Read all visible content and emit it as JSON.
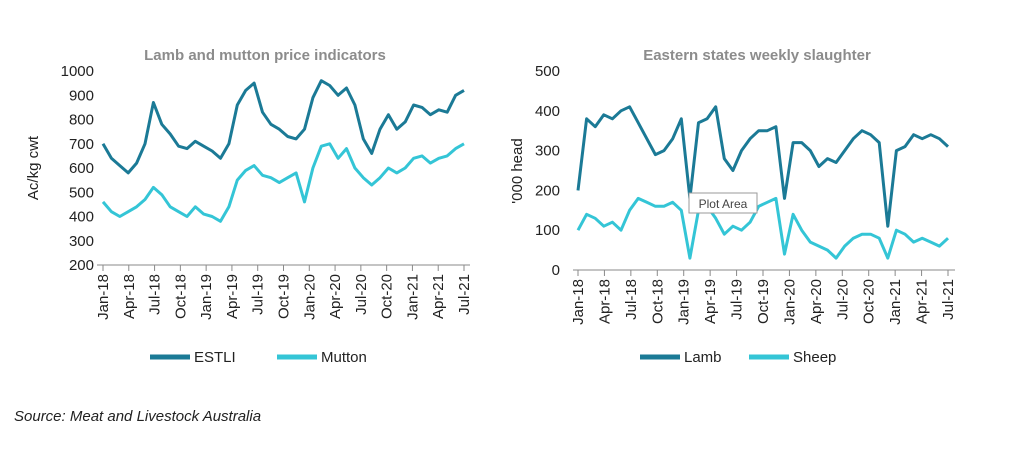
{
  "source": "Source: Meat and Livestock Australia",
  "charts": {
    "c1": {
      "title": "Lamb and mutton price indicators",
      "ylabel": "Ac/kg cwt",
      "yticks": [
        "1000",
        "900",
        "800",
        "700",
        "600",
        "500",
        "400",
        "300",
        "200"
      ],
      "xticks": [
        "Jan-18",
        "Apr-18",
        "Jul-18",
        "Oct-18",
        "Jan-19",
        "Apr-19",
        "Jul-19",
        "Oct-19",
        "Jan-20",
        "Apr-20",
        "Jul-20",
        "Oct-20",
        "Jan-21",
        "Apr-21",
        "Jul-21"
      ],
      "legend": [
        "ESTLI",
        "Mutton"
      ]
    },
    "c2": {
      "title": "Eastern states weekly slaughter",
      "ylabel": "'000 head",
      "yticks": [
        "500",
        "400",
        "300",
        "200",
        "100",
        "0"
      ],
      "xticks": [
        "Jan-18",
        "Apr-18",
        "Jul-18",
        "Oct-18",
        "Jan-19",
        "Apr-19",
        "Jul-19",
        "Oct-19",
        "Jan-20",
        "Apr-20",
        "Jul-20",
        "Oct-20",
        "Jan-21",
        "Apr-21",
        "Jul-21"
      ],
      "legend": [
        "Lamb",
        "Sheep"
      ],
      "tooltip": "Plot Area"
    }
  },
  "chart_data": [
    {
      "type": "line",
      "title": "Lamb and mutton price indicators",
      "ylabel": "Ac/kg cwt",
      "ylim": [
        200,
        1000
      ],
      "x": [
        "Jan-18",
        "Feb-18",
        "Mar-18",
        "Apr-18",
        "May-18",
        "Jun-18",
        "Jul-18",
        "Aug-18",
        "Sep-18",
        "Oct-18",
        "Nov-18",
        "Dec-18",
        "Jan-19",
        "Feb-19",
        "Mar-19",
        "Apr-19",
        "May-19",
        "Jun-19",
        "Jul-19",
        "Aug-19",
        "Sep-19",
        "Oct-19",
        "Nov-19",
        "Dec-19",
        "Jan-20",
        "Feb-20",
        "Mar-20",
        "Apr-20",
        "May-20",
        "Jun-20",
        "Jul-20",
        "Aug-20",
        "Sep-20",
        "Oct-20",
        "Nov-20",
        "Dec-20",
        "Jan-21",
        "Feb-21",
        "Mar-21",
        "Apr-21",
        "May-21",
        "Jun-21",
        "Jul-21",
        "Aug-21"
      ],
      "series": [
        {
          "name": "ESTLI",
          "color": "#1b7a96",
          "values": [
            700,
            640,
            610,
            580,
            620,
            700,
            870,
            780,
            740,
            690,
            680,
            710,
            690,
            670,
            640,
            700,
            860,
            920,
            950,
            830,
            780,
            760,
            730,
            720,
            760,
            890,
            960,
            940,
            900,
            930,
            860,
            720,
            660,
            760,
            820,
            760,
            790,
            860,
            850,
            820,
            840,
            830,
            900,
            920
          ]
        },
        {
          "name": "Mutton",
          "color": "#34c5d6",
          "values": [
            460,
            420,
            400,
            420,
            440,
            470,
            520,
            490,
            440,
            420,
            400,
            440,
            410,
            400,
            380,
            440,
            550,
            590,
            610,
            570,
            560,
            540,
            560,
            580,
            460,
            600,
            690,
            700,
            640,
            680,
            600,
            560,
            530,
            560,
            600,
            580,
            600,
            640,
            650,
            620,
            640,
            650,
            680,
            700
          ]
        }
      ]
    },
    {
      "type": "line",
      "title": "Eastern states weekly slaughter",
      "ylabel": "'000 head",
      "ylim": [
        0,
        500
      ],
      "x": [
        "Jan-18",
        "Feb-18",
        "Mar-18",
        "Apr-18",
        "May-18",
        "Jun-18",
        "Jul-18",
        "Aug-18",
        "Sep-18",
        "Oct-18",
        "Nov-18",
        "Dec-18",
        "Jan-19",
        "Feb-19",
        "Mar-19",
        "Apr-19",
        "May-19",
        "Jun-19",
        "Jul-19",
        "Aug-19",
        "Sep-19",
        "Oct-19",
        "Nov-19",
        "Dec-19",
        "Jan-20",
        "Feb-20",
        "Mar-20",
        "Apr-20",
        "May-20",
        "Jun-20",
        "Jul-20",
        "Aug-20",
        "Sep-20",
        "Oct-20",
        "Nov-20",
        "Dec-20",
        "Jan-21",
        "Feb-21",
        "Mar-21",
        "Apr-21",
        "May-21",
        "Jun-21",
        "Jul-21",
        "Aug-21"
      ],
      "series": [
        {
          "name": "Lamb",
          "color": "#1b7a96",
          "values": [
            200,
            380,
            360,
            390,
            380,
            400,
            410,
            370,
            330,
            290,
            300,
            330,
            380,
            180,
            370,
            380,
            410,
            280,
            250,
            300,
            330,
            350,
            350,
            360,
            180,
            320,
            320,
            300,
            260,
            280,
            270,
            300,
            330,
            350,
            340,
            320,
            110,
            300,
            310,
            340,
            330,
            340,
            330,
            310
          ]
        },
        {
          "name": "Sheep",
          "color": "#34c5d6",
          "values": [
            100,
            140,
            130,
            110,
            120,
            100,
            150,
            180,
            170,
            160,
            160,
            170,
            150,
            30,
            150,
            160,
            130,
            90,
            110,
            100,
            120,
            160,
            170,
            180,
            40,
            140,
            100,
            70,
            60,
            50,
            30,
            60,
            80,
            90,
            90,
            80,
            30,
            100,
            90,
            70,
            80,
            70,
            60,
            80
          ]
        }
      ]
    }
  ]
}
